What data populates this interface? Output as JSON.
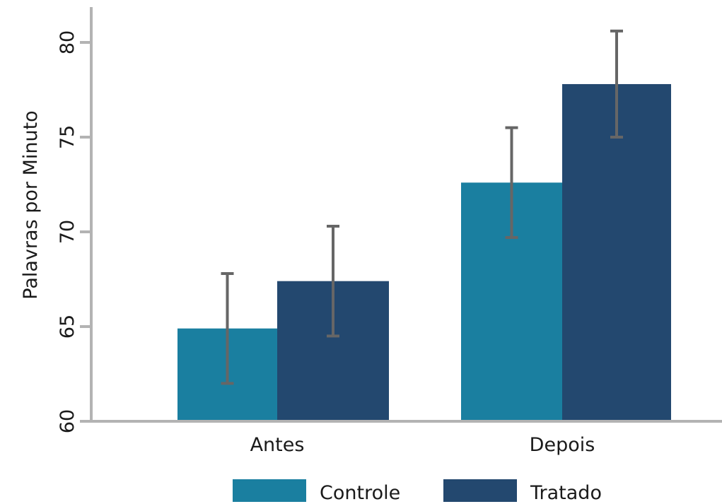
{
  "chart_data": {
    "type": "bar",
    "title": "",
    "xlabel": "",
    "ylabel": "Palavras por Minuto",
    "ylim": [
      60,
      82
    ],
    "yticks": [
      60,
      65,
      70,
      75,
      80
    ],
    "categories": [
      "Antes",
      "Depois"
    ],
    "series": [
      {
        "name": "Controle",
        "color": "#1a7fa0",
        "values": [
          64.9,
          72.6
        ],
        "err": [
          2.9,
          2.9
        ]
      },
      {
        "name": "Tratado",
        "color": "#23486f",
        "values": [
          67.4,
          77.8
        ],
        "err": [
          2.9,
          2.8
        ]
      }
    ],
    "error_bar_color": "#666666",
    "axis_color": "#b3b3b3",
    "grid": false,
    "legend_position": "bottom"
  }
}
